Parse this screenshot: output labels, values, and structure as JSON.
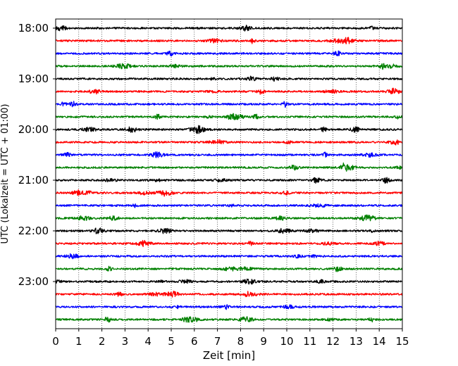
{
  "chart_data": {
    "type": "line",
    "title": "",
    "xlabel": "Zeit  [min]",
    "ylabel": "UTC (Lokalzeit = UTC + 01:00)",
    "xlim": [
      0,
      15
    ],
    "x_ticks": [
      0,
      1,
      2,
      3,
      4,
      5,
      6,
      7,
      8,
      9,
      10,
      11,
      12,
      13,
      14,
      15
    ],
    "y_ticks": [
      {
        "label": "18:00",
        "trace_index": 0
      },
      {
        "label": "19:00",
        "trace_index": 4
      },
      {
        "label": "20:00",
        "trace_index": 8
      },
      {
        "label": "21:00",
        "trace_index": 12
      },
      {
        "label": "22:00",
        "trace_index": 16
      },
      {
        "label": "23:00",
        "trace_index": 20
      }
    ],
    "grid": {
      "vertical": true,
      "style": "dotted"
    },
    "trace_colors": [
      "#000000",
      "#ff0000",
      "#0000ff",
      "#008000"
    ],
    "traces": [
      {
        "start": "18:00",
        "color": "#000000"
      },
      {
        "start": "18:15",
        "color": "#ff0000"
      },
      {
        "start": "18:30",
        "color": "#0000ff"
      },
      {
        "start": "18:45",
        "color": "#008000"
      },
      {
        "start": "19:00",
        "color": "#000000"
      },
      {
        "start": "19:15",
        "color": "#ff0000"
      },
      {
        "start": "19:30",
        "color": "#0000ff"
      },
      {
        "start": "19:45",
        "color": "#008000"
      },
      {
        "start": "20:00",
        "color": "#000000"
      },
      {
        "start": "20:15",
        "color": "#ff0000"
      },
      {
        "start": "20:30",
        "color": "#0000ff"
      },
      {
        "start": "20:45",
        "color": "#008000"
      },
      {
        "start": "21:00",
        "color": "#000000"
      },
      {
        "start": "21:15",
        "color": "#ff0000"
      },
      {
        "start": "21:30",
        "color": "#0000ff"
      },
      {
        "start": "21:45",
        "color": "#008000"
      },
      {
        "start": "22:00",
        "color": "#000000"
      },
      {
        "start": "22:15",
        "color": "#ff0000"
      },
      {
        "start": "22:30",
        "color": "#0000ff"
      },
      {
        "start": "22:45",
        "color": "#008000"
      },
      {
        "start": "23:00",
        "color": "#000000"
      },
      {
        "start": "23:15",
        "color": "#ff0000"
      },
      {
        "start": "23:30",
        "color": "#0000ff"
      },
      {
        "start": "23:45",
        "color": "#008000"
      }
    ]
  }
}
